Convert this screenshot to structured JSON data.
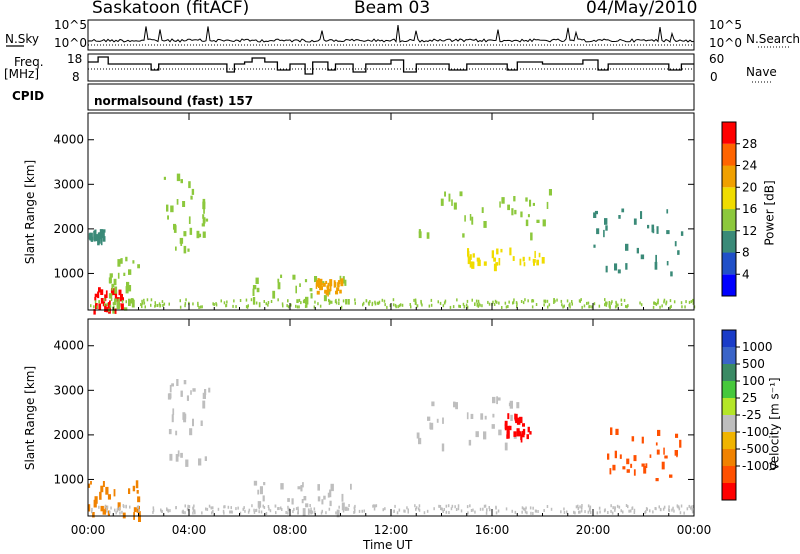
{
  "header": {
    "station": "Saskatoon (fitACF)",
    "beam": "Beam 03",
    "date": "04/May/2010"
  },
  "left_labels": {
    "nsky": "N.Sky",
    "freq": "Freq.",
    "freq_unit": "[MHz]",
    "cpid": "CPID"
  },
  "right_labels": {
    "nsearch": "N.Search",
    "nave": "Nave"
  },
  "nsky_ticks": {
    "top": "10^5",
    "bottom": "10^0"
  },
  "nsearch_ticks": {
    "top": "10^5",
    "bottom": "10^0"
  },
  "freq_ticks": {
    "top": "18",
    "bottom": "8"
  },
  "nave_ticks": {
    "top": "60",
    "bottom": "0"
  },
  "cpid_text": "normalsound (fast) 157",
  "x_axis": {
    "label": "Time UT",
    "ticks": [
      "00:00",
      "04:00",
      "08:00",
      "12:00",
      "16:00",
      "20:00",
      "00:00"
    ]
  },
  "power_panel": {
    "ylabel": "Slant Range [km]",
    "yticks": [
      "1000",
      "2000",
      "3000",
      "4000"
    ],
    "colorbar_label": "Power [dB]",
    "colorbar_ticks": [
      "4",
      "8",
      "12",
      "16",
      "20",
      "24",
      "28"
    ],
    "colors": [
      "#0000ff",
      "#2050c8",
      "#3a8a78",
      "#8cc83c",
      "#f0dc00",
      "#f0a000",
      "#ff6400",
      "#ff0000"
    ]
  },
  "velocity_panel": {
    "ylabel": "Slant Range [km]",
    "yticks": [
      "1000",
      "2000",
      "3000",
      "4000"
    ],
    "colorbar_label": "Velocity [m s⁻¹]",
    "colorbar_ticks": [
      "1000",
      "500",
      "100",
      "25",
      "-25",
      "-100",
      "-500",
      "-1000"
    ],
    "colors": [
      "#1a3cc8",
      "#3a64c8",
      "#3a8a64",
      "#46c83c",
      "#b4e628",
      "#bebebe",
      "#f0b400",
      "#f08200",
      "#ff5000",
      "#ff0000"
    ]
  },
  "chart_data": [
    {
      "type": "heatmap",
      "title": "Power",
      "xlabel": "Time UT",
      "ylabel": "Slant Range [km]",
      "xlim": [
        0,
        24
      ],
      "ylim": [
        180,
        4600
      ],
      "colorbar": {
        "label": "Power [dB]",
        "range": [
          0,
          32
        ]
      },
      "regions": [
        {
          "t": [
            0.2,
            1.4
          ],
          "r": [
            200,
            700
          ],
          "value": 28
        },
        {
          "t": [
            0.8,
            2.0
          ],
          "r": [
            200,
            1400
          ],
          "value": 14
        },
        {
          "t": [
            0.0,
            0.6
          ],
          "r": [
            1800,
            2000
          ],
          "value": 8
        },
        {
          "t": [
            3.0,
            4.8
          ],
          "r": [
            1400,
            3300
          ],
          "value": 12
        },
        {
          "t": [
            6.5,
            10.5
          ],
          "r": [
            300,
            1000
          ],
          "value": 12
        },
        {
          "t": [
            9.0,
            10.0
          ],
          "r": [
            600,
            900
          ],
          "value": 22
        },
        {
          "t": [
            13.0,
            18.8
          ],
          "r": [
            1800,
            2900
          ],
          "value": 12
        },
        {
          "t": [
            15.0,
            18.0
          ],
          "r": [
            1200,
            1600
          ],
          "value": 16
        },
        {
          "t": [
            20.0,
            23.5
          ],
          "r": [
            1000,
            2500
          ],
          "value": 10
        }
      ]
    },
    {
      "type": "heatmap",
      "title": "Velocity",
      "xlabel": "Time UT",
      "ylabel": "Slant Range [km]",
      "xlim": [
        0,
        24
      ],
      "ylim": [
        180,
        4600
      ],
      "colorbar": {
        "label": "Velocity [m s⁻¹]",
        "range": [
          -1000,
          1000
        ]
      },
      "regions": [
        {
          "t": [
            0.0,
            2.0
          ],
          "r": [
            200,
            1000
          ],
          "value": -100
        },
        {
          "t": [
            3.0,
            4.8
          ],
          "r": [
            1400,
            3300
          ],
          "value": 0
        },
        {
          "t": [
            6.5,
            10.5
          ],
          "r": [
            300,
            1000
          ],
          "value": 0
        },
        {
          "t": [
            13.0,
            17.0
          ],
          "r": [
            1800,
            2900
          ],
          "value": 0
        },
        {
          "t": [
            16.5,
            17.5
          ],
          "r": [
            2000,
            2500
          ],
          "value": -500
        },
        {
          "t": [
            20.5,
            23.5
          ],
          "r": [
            1000,
            2200
          ],
          "value": -300
        }
      ]
    }
  ]
}
